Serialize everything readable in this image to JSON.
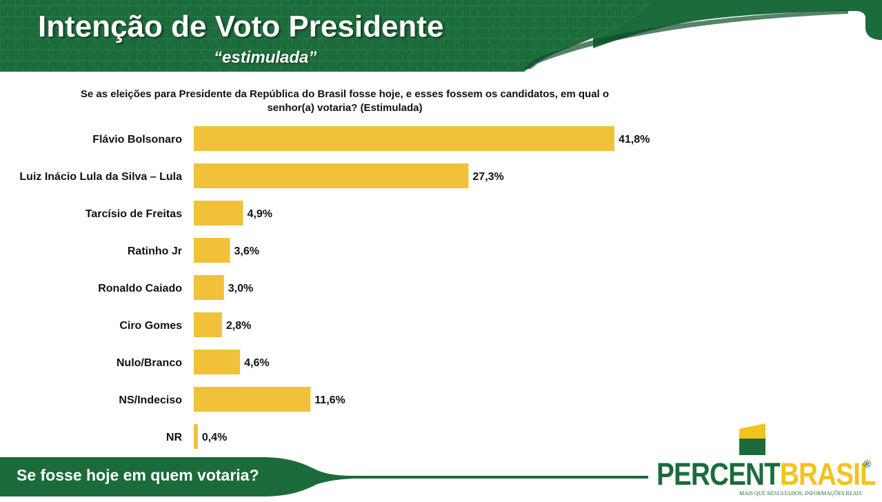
{
  "header": {
    "title": "Intenção de Voto Presidente",
    "subtitle": "“estimulada”"
  },
  "question": "Se as eleições para Presidente da República do Brasil fosse hoje, e esses fossem os candidatos, em qual o senhor(a) votaria? (Estimulada)",
  "footer": {
    "text": "Se fosse hoje em quem votaria?"
  },
  "logo": {
    "part1": "PERCENT",
    "part2": "BRASIL",
    "registered": "®",
    "tagline": "MAIS QUE RESULTADOS, INFORMAÇÕES REAIS"
  },
  "colors": {
    "green": "#1c6b3b",
    "dark_green": "#0f4d28",
    "bar": "#f2c13a",
    "logo_yellow": "#f3c21c"
  },
  "chart_data": {
    "type": "bar",
    "orientation": "horizontal",
    "title": "",
    "xlabel": "",
    "ylabel": "",
    "xlim": [
      0,
      41.8
    ],
    "categories": [
      "Flávio Bolsonaro",
      "Luiz Inácio Lula da Silva – Lula",
      "Tarcísio de Freitas",
      "Ratinho Jr",
      "Ronaldo Caiado",
      "Ciro Gomes",
      "Nulo/Branco",
      "NS/Indeciso",
      "NR"
    ],
    "values": [
      41.8,
      27.3,
      4.9,
      3.6,
      3.0,
      2.8,
      4.6,
      11.6,
      0.4
    ],
    "value_labels": [
      "41,8%",
      "27,3%",
      "4,9%",
      "3,6%",
      "3,0%",
      "2,8%",
      "4,6%",
      "11,6%",
      "0,4%"
    ]
  }
}
